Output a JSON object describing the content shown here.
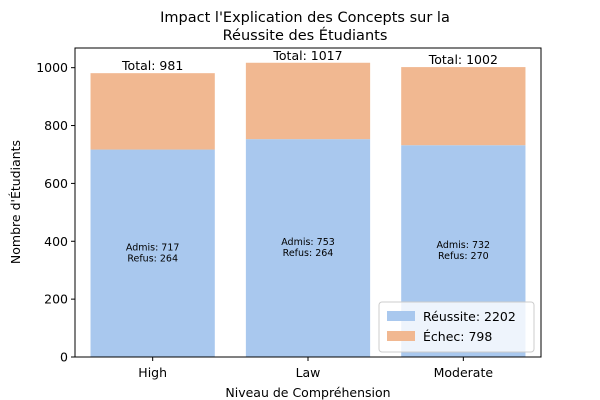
{
  "chart_data": {
    "type": "bar",
    "stacked": true,
    "title_line1": "Impact l'Explication des Concepts sur la",
    "title_line2": "Réussite des Étudiants",
    "xlabel": "Niveau de Compréhension",
    "ylabel": "Nombre d'Étudiants",
    "categories": [
      "High",
      "Law",
      "Moderate"
    ],
    "ylim": [
      0,
      1068
    ],
    "yticks": [
      "0",
      "200",
      "400",
      "600",
      "800",
      "1000"
    ],
    "series": [
      {
        "name": "Réussite",
        "color": "#a9c8ee",
        "values": [
          717,
          753,
          732
        ]
      },
      {
        "name": "Échec",
        "color": "#f1b891",
        "values": [
          264,
          264,
          270
        ]
      }
    ],
    "totals": [
      "Total: 981",
      "Total: 1017",
      "Total: 1002"
    ],
    "inner_labels_admis": [
      "Admis: 717",
      "Admis: 753",
      "Admis: 732"
    ],
    "inner_labels_refus": [
      "Refus: 264",
      "Refus: 264",
      "Refus: 270"
    ],
    "legend": {
      "placement": "lower-right",
      "entries": [
        "Réussite: 2202",
        "Échec: 798"
      ]
    }
  }
}
